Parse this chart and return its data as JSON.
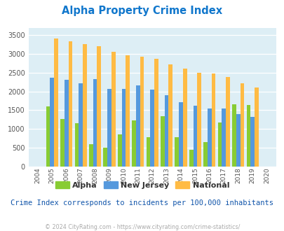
{
  "title": "Alpha Property Crime Index",
  "years": [
    2004,
    2005,
    2006,
    2007,
    2008,
    2009,
    2010,
    2011,
    2012,
    2013,
    2014,
    2015,
    2016,
    2017,
    2018,
    2019,
    2020
  ],
  "alpha": [
    0,
    1600,
    1270,
    1150,
    590,
    490,
    850,
    1220,
    780,
    1330,
    780,
    450,
    640,
    1170,
    1650,
    1640,
    0
  ],
  "new_jersey": [
    0,
    2360,
    2310,
    2210,
    2320,
    2060,
    2060,
    2160,
    2050,
    1900,
    1720,
    1610,
    1550,
    1550,
    1390,
    1310,
    0
  ],
  "national": [
    0,
    3420,
    3340,
    3270,
    3210,
    3050,
    2960,
    2920,
    2870,
    2730,
    2600,
    2500,
    2470,
    2380,
    2210,
    2110,
    0
  ],
  "alpha_color": "#88cc33",
  "nj_color": "#5599dd",
  "national_color": "#ffbb44",
  "bg_color": "#ddeef5",
  "ylim": [
    0,
    3700
  ],
  "yticks": [
    0,
    500,
    1000,
    1500,
    2000,
    2500,
    3000,
    3500
  ],
  "note": "Crime Index corresponds to incidents per 100,000 inhabitants",
  "copyright": "© 2024 CityRating.com - https://www.cityrating.com/crime-statistics/",
  "title_color": "#1177cc",
  "note_color": "#1155aa",
  "copyright_color": "#aaaaaa",
  "tick_color": "#555555"
}
